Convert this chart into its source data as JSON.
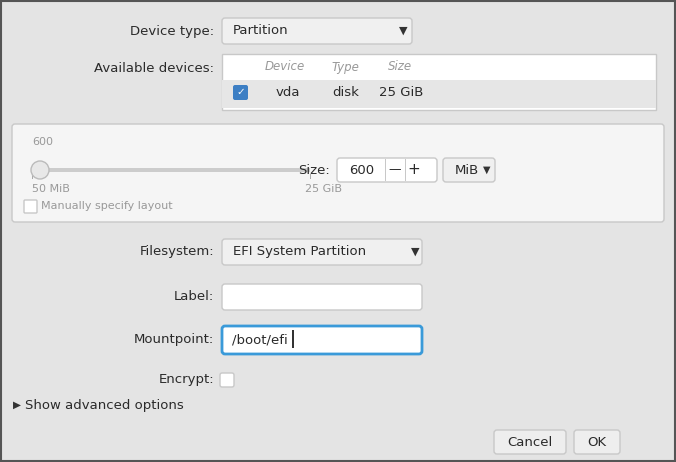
{
  "bg_color": "#e4e4e4",
  "dialog_bg": "#e4e4e4",
  "panel_bg": "#f0f0f0",
  "white": "#ffffff",
  "blue_border": "#3a9ad9",
  "blue_check": "#3d7fc4",
  "text_color": "#2a2a2a",
  "gray_text": "#999999",
  "border_color": "#c8c8c8",
  "slider_track": "#cccccc",
  "slider_handle_fill": "#e8e8e8",
  "slider_handle_edge": "#bbbbbb",
  "button_bg": "#ebebeb",
  "device_type_label": "Device type:",
  "device_type_val": "Partition",
  "avail_devices_label": "Available devices:",
  "col_device": "Device",
  "col_type": "Type",
  "col_size": "Size",
  "row_device": "vda",
  "row_type": "disk",
  "row_size": "25 GiB",
  "size_label": "Size:",
  "size_val": "600",
  "slider_val_label": "600",
  "slider_left": "50 MiB",
  "slider_right": "25 GiB",
  "manual_label": "Manually specify layout",
  "filesystem_label": "Filesystem:",
  "filesystem_val": "EFI System Partition",
  "label_label": "Label:",
  "mountpoint_label": "Mountpoint:",
  "mountpoint_val": "/boot/efi",
  "encrypt_label": "Encrypt:",
  "advanced_label": "Show advanced options",
  "cancel_btn": "Cancel",
  "ok_btn": "OK",
  "mib_btn": "MiB"
}
